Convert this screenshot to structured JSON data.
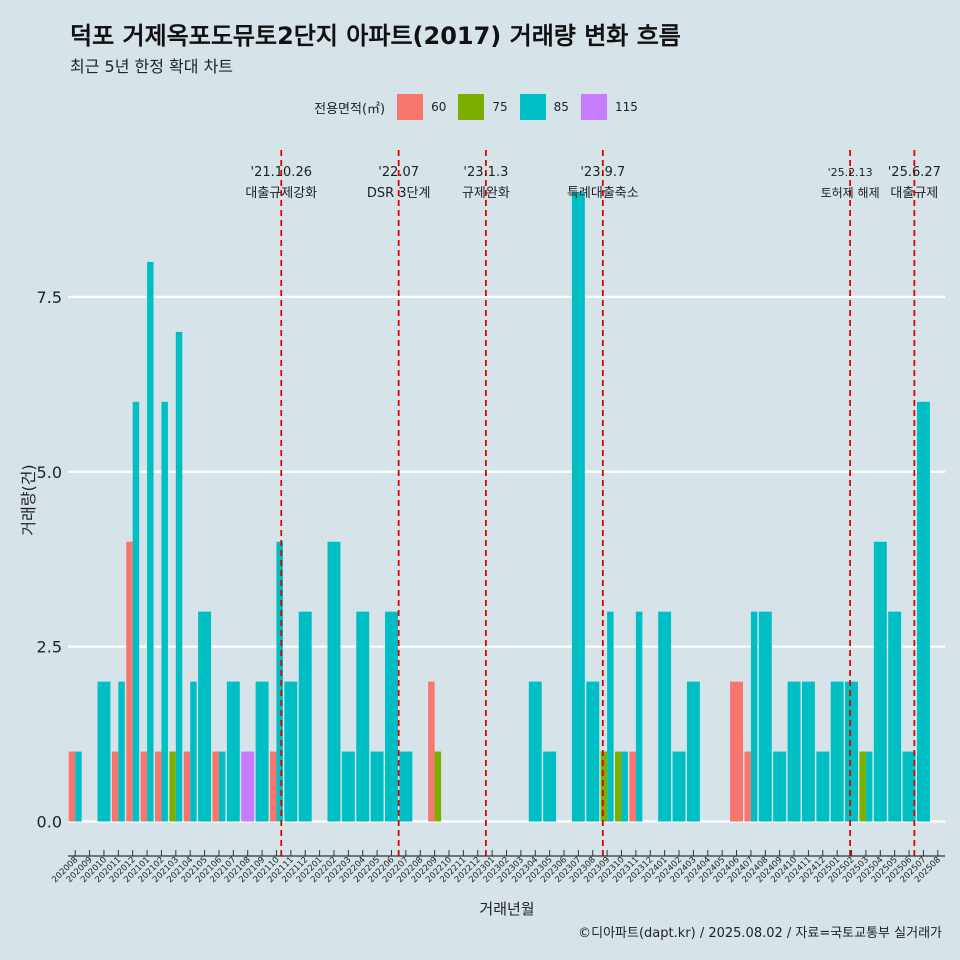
{
  "title": "덕포 거제옥포도뮤토2단지 아파트(2017) 거래량 변화 흐름",
  "subtitle": "최근 5년 한정 확대 차트",
  "caption": "©디아파트(dapt.kr) / 2025.08.02 / 자료=국토교통부 실거래가",
  "colors": {
    "background": "#d6e4ea",
    "grid": "#ffffff",
    "vline": "#e00000",
    "60": "#f8766d",
    "75": "#7cae00",
    "85": "#00bfc4",
    "115": "#c77cff"
  },
  "chart_data": {
    "type": "bar",
    "xlabel": "거래년월",
    "ylabel": "거래량(건)",
    "ylim": [
      -0.35,
      9.6
    ],
    "yticks": [
      0,
      2.5,
      5,
      7.5
    ],
    "ytick_labels": [
      "0.0",
      "2.5",
      "5.0",
      "7.5"
    ],
    "legend_title": "전용면적(㎡)",
    "legend_position": "top-center",
    "legend": [
      "60",
      "75",
      "85",
      "115"
    ],
    "categories": [
      "202008",
      "202009",
      "202010",
      "202011",
      "202012",
      "202101",
      "202102",
      "202103",
      "202104",
      "202105",
      "202106",
      "202107",
      "202108",
      "202109",
      "202110",
      "202111",
      "202112",
      "202201",
      "202202",
      "202203",
      "202204",
      "202205",
      "202206",
      "202207",
      "202208",
      "202209",
      "202210",
      "202211",
      "202212",
      "202301",
      "202302",
      "202303",
      "202304",
      "202305",
      "202306",
      "202307",
      "202308",
      "202309",
      "202310",
      "202311",
      "202312",
      "202401",
      "202402",
      "202403",
      "202404",
      "202405",
      "202406",
      "202407",
      "202408",
      "202409",
      "202410",
      "202411",
      "202412",
      "202501",
      "202502",
      "202503",
      "202504",
      "202505",
      "202506",
      "202507",
      "202508"
    ],
    "series": [
      {
        "name": "60",
        "values": [
          1,
          0,
          0,
          1,
          4,
          1,
          1,
          0,
          1,
          0,
          1,
          0,
          0,
          0,
          1,
          0,
          0,
          0,
          0,
          0,
          0,
          0,
          0,
          0,
          0,
          2,
          0,
          0,
          0,
          0,
          0,
          0,
          0,
          0,
          0,
          0,
          0,
          0,
          0,
          1,
          0,
          0,
          0,
          0,
          0,
          0,
          2,
          1,
          0,
          0,
          0,
          0,
          0,
          0,
          0,
          0,
          0,
          0,
          0,
          0,
          0
        ]
      },
      {
        "name": "75",
        "values": [
          0,
          0,
          0,
          0,
          0,
          0,
          0,
          1,
          0,
          0,
          0,
          0,
          0,
          0,
          0,
          0,
          0,
          0,
          0,
          0,
          0,
          0,
          0,
          0,
          0,
          1,
          0,
          0,
          0,
          0,
          0,
          0,
          0,
          0,
          0,
          0,
          0,
          1,
          1,
          0,
          0,
          0,
          0,
          0,
          0,
          0,
          0,
          0,
          0,
          0,
          0,
          0,
          0,
          0,
          0,
          1,
          0,
          0,
          0,
          0,
          0
        ]
      },
      {
        "name": "85",
        "values": [
          1,
          0,
          2,
          2,
          6,
          8,
          6,
          7,
          2,
          3,
          1,
          2,
          0,
          2,
          4,
          2,
          3,
          0,
          4,
          1,
          3,
          1,
          3,
          1,
          0,
          0,
          0,
          0,
          0,
          0,
          0,
          0,
          2,
          1,
          0,
          9,
          2,
          3,
          1,
          3,
          0,
          3,
          1,
          2,
          0,
          0,
          0,
          3,
          3,
          1,
          2,
          2,
          1,
          2,
          2,
          1,
          4,
          3,
          1,
          6,
          0
        ]
      },
      {
        "name": "115",
        "values": [
          0,
          0,
          0,
          0,
          0,
          0,
          0,
          0,
          0,
          0,
          0,
          0,
          1,
          0,
          0,
          0,
          0,
          0,
          0,
          0,
          0,
          0,
          0,
          0,
          0,
          0,
          0,
          0,
          0,
          0,
          0,
          0,
          0,
          0,
          0,
          0,
          0,
          0,
          0,
          0,
          0,
          0,
          0,
          0,
          0,
          0,
          0,
          0,
          0,
          0,
          0,
          0,
          0,
          0,
          0,
          0,
          0,
          0,
          0,
          0,
          0
        ]
      }
    ],
    "annotations": [
      {
        "date": "'21.10.26",
        "label": "대출규제강화",
        "month": "202110",
        "day": 26
      },
      {
        "date": "'22.07",
        "label": "DSR 3단계",
        "month": "202207",
        "day": 1
      },
      {
        "date": "'23.1.3",
        "label": "규제완화",
        "month": "202301",
        "day": 3
      },
      {
        "date": "'23.9.7",
        "label": "특례대출축소",
        "month": "202309",
        "day": 7
      },
      {
        "date": "'25.2.13",
        "label": "토허제 해제",
        "month": "202502",
        "day": 13
      },
      {
        "date": "'25.6.27",
        "label": "대출규제",
        "month": "202506",
        "day": 27
      }
    ]
  }
}
